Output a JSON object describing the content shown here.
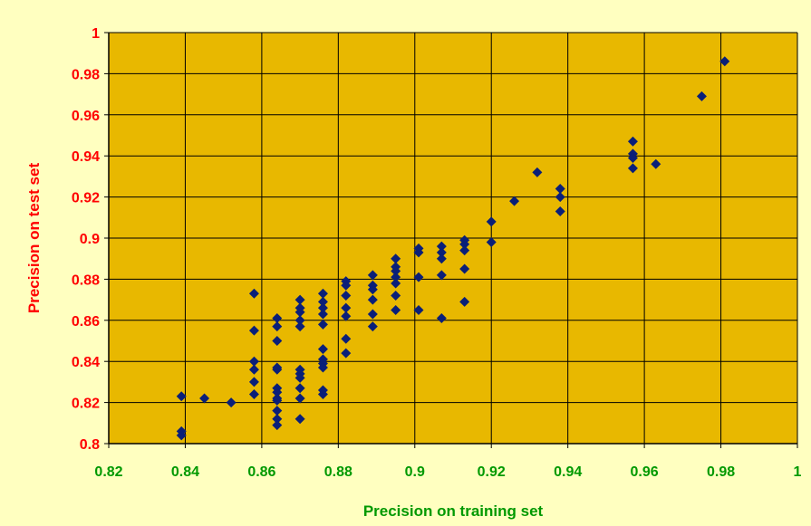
{
  "chart_data": {
    "type": "scatter",
    "xlabel": "Precision on training set",
    "ylabel": "Precision on test set",
    "xlim": [
      0.82,
      1
    ],
    "ylim": [
      0.8,
      1
    ],
    "x_ticks": [
      "0.82",
      "0.84",
      "0.86",
      "0.88",
      "0.9",
      "0.92",
      "0.94",
      "0.96",
      "0.98",
      "1"
    ],
    "y_ticks": [
      "0.8",
      "0.82",
      "0.84",
      "0.86",
      "0.88",
      "0.9",
      "0.92",
      "0.94",
      "0.96",
      "0.98",
      "1"
    ],
    "grid": true,
    "legend": "none",
    "colors": {
      "page_background": "#FFFFC0",
      "plot_background": "#E8B800",
      "marker": "#0A1F78",
      "y_axis_text": "#FF0000",
      "x_axis_text": "#009900",
      "grid": "#000000"
    },
    "points": [
      [
        0.839,
        0.823
      ],
      [
        0.839,
        0.806
      ],
      [
        0.839,
        0.804
      ],
      [
        0.845,
        0.822
      ],
      [
        0.852,
        0.82
      ],
      [
        0.858,
        0.873
      ],
      [
        0.858,
        0.855
      ],
      [
        0.858,
        0.84
      ],
      [
        0.858,
        0.836
      ],
      [
        0.858,
        0.83
      ],
      [
        0.858,
        0.824
      ],
      [
        0.864,
        0.861
      ],
      [
        0.864,
        0.857
      ],
      [
        0.864,
        0.85
      ],
      [
        0.864,
        0.837
      ],
      [
        0.864,
        0.836
      ],
      [
        0.864,
        0.827
      ],
      [
        0.864,
        0.825
      ],
      [
        0.864,
        0.822
      ],
      [
        0.864,
        0.821
      ],
      [
        0.864,
        0.816
      ],
      [
        0.864,
        0.812
      ],
      [
        0.864,
        0.809
      ],
      [
        0.87,
        0.87
      ],
      [
        0.87,
        0.866
      ],
      [
        0.87,
        0.864
      ],
      [
        0.87,
        0.86
      ],
      [
        0.87,
        0.857
      ],
      [
        0.87,
        0.836
      ],
      [
        0.87,
        0.834
      ],
      [
        0.87,
        0.832
      ],
      [
        0.87,
        0.827
      ],
      [
        0.87,
        0.822
      ],
      [
        0.87,
        0.812
      ],
      [
        0.876,
        0.873
      ],
      [
        0.876,
        0.869
      ],
      [
        0.876,
        0.866
      ],
      [
        0.876,
        0.863
      ],
      [
        0.876,
        0.858
      ],
      [
        0.876,
        0.846
      ],
      [
        0.876,
        0.841
      ],
      [
        0.876,
        0.839
      ],
      [
        0.876,
        0.837
      ],
      [
        0.876,
        0.826
      ],
      [
        0.876,
        0.824
      ],
      [
        0.882,
        0.879
      ],
      [
        0.882,
        0.877
      ],
      [
        0.882,
        0.872
      ],
      [
        0.882,
        0.866
      ],
      [
        0.882,
        0.862
      ],
      [
        0.882,
        0.851
      ],
      [
        0.882,
        0.844
      ],
      [
        0.889,
        0.882
      ],
      [
        0.889,
        0.877
      ],
      [
        0.889,
        0.875
      ],
      [
        0.889,
        0.87
      ],
      [
        0.889,
        0.863
      ],
      [
        0.889,
        0.857
      ],
      [
        0.895,
        0.89
      ],
      [
        0.895,
        0.886
      ],
      [
        0.895,
        0.884
      ],
      [
        0.895,
        0.881
      ],
      [
        0.895,
        0.878
      ],
      [
        0.895,
        0.872
      ],
      [
        0.895,
        0.865
      ],
      [
        0.901,
        0.895
      ],
      [
        0.901,
        0.893
      ],
      [
        0.901,
        0.881
      ],
      [
        0.901,
        0.865
      ],
      [
        0.907,
        0.896
      ],
      [
        0.907,
        0.893
      ],
      [
        0.907,
        0.89
      ],
      [
        0.907,
        0.882
      ],
      [
        0.907,
        0.861
      ],
      [
        0.913,
        0.899
      ],
      [
        0.913,
        0.897
      ],
      [
        0.913,
        0.894
      ],
      [
        0.913,
        0.885
      ],
      [
        0.913,
        0.869
      ],
      [
        0.92,
        0.908
      ],
      [
        0.92,
        0.898
      ],
      [
        0.926,
        0.918
      ],
      [
        0.932,
        0.932
      ],
      [
        0.938,
        0.924
      ],
      [
        0.938,
        0.92
      ],
      [
        0.938,
        0.913
      ],
      [
        0.957,
        0.947
      ],
      [
        0.957,
        0.941
      ],
      [
        0.957,
        0.939
      ],
      [
        0.957,
        0.934
      ],
      [
        0.963,
        0.936
      ],
      [
        0.975,
        0.969
      ],
      [
        0.981,
        0.986
      ]
    ]
  }
}
